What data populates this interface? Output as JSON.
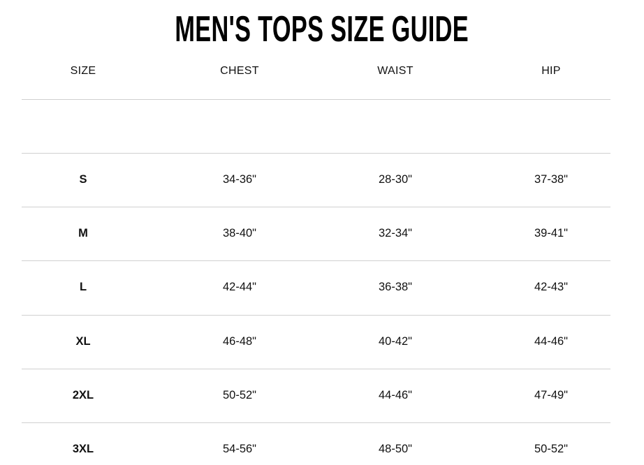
{
  "title": "MEN'S TOPS SIZE GUIDE",
  "table": {
    "headers": [
      "SIZE",
      "CHEST",
      "WAIST",
      "HIP"
    ],
    "rows": [
      [
        "S",
        "34-36\"",
        "28-30\"",
        "37-38\""
      ],
      [
        "M",
        "38-40\"",
        "32-34\"",
        "39-41\""
      ],
      [
        "L",
        "42-44\"",
        "36-38\"",
        "42-43\""
      ],
      [
        "XL",
        "46-48\"",
        "40-42\"",
        "44-46\""
      ],
      [
        "2XL",
        "50-52\"",
        "44-46\"",
        "47-49\""
      ],
      [
        "3XL",
        "54-56\"",
        "48-50\"",
        "50-52\""
      ]
    ]
  }
}
